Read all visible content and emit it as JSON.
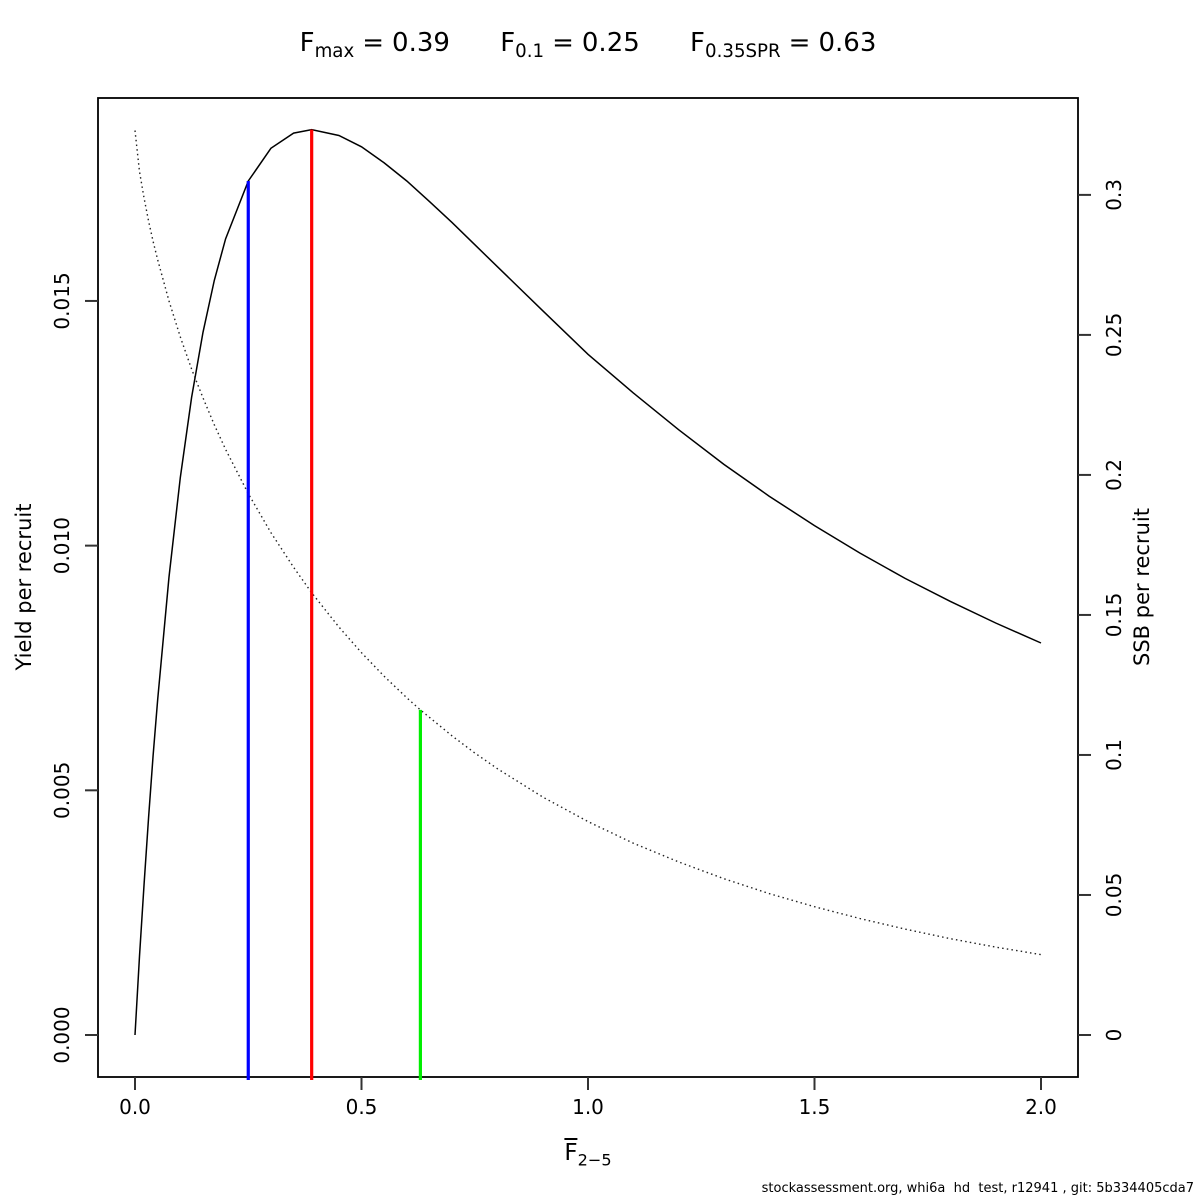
{
  "header": {
    "title_segments": [
      {
        "base": "F",
        "sub": "max",
        "eq": "=",
        "value": "0.39"
      },
      {
        "base": "F",
        "sub": "0.1",
        "eq": "=",
        "value": "0.25"
      },
      {
        "base": "F",
        "sub": "0.35SPR",
        "eq": "=",
        "value": "0.63"
      }
    ]
  },
  "chart_data": {
    "type": "line",
    "title": "Fmax = 0.39   F0.1 = 0.25   F0.35SPR = 0.63",
    "xlabel": {
      "base": "F",
      "overbar": true,
      "sub": "2−5"
    },
    "ylabel_left": "Yield per recruit",
    "ylabel_right": "SSB per recruit",
    "grid": false,
    "legend": "none",
    "x": [
      0,
      0.01,
      0.02,
      0.03,
      0.04,
      0.05,
      0.075,
      0.1,
      0.125,
      0.15,
      0.175,
      0.2,
      0.25,
      0.3,
      0.35,
      0.39,
      0.45,
      0.5,
      0.55,
      0.6,
      0.63,
      0.65,
      0.7,
      0.75,
      0.8,
      0.9,
      1.0,
      1.1,
      1.2,
      1.3,
      1.4,
      1.5,
      1.6,
      1.7,
      1.8,
      1.9,
      2.0
    ],
    "series": [
      {
        "name": "Yield per recruit",
        "axis": "left",
        "line_style": "solid",
        "color": "#000000",
        "values": [
          0,
          0.00161,
          0.00309,
          0.00445,
          0.00571,
          0.00686,
          0.00936,
          0.01139,
          0.01303,
          0.01436,
          0.01542,
          0.01627,
          0.01745,
          0.01812,
          0.01843,
          0.0185,
          0.01838,
          0.01815,
          0.01782,
          0.01745,
          0.0172,
          0.01703,
          0.0166,
          0.01615,
          0.0157,
          0.0148,
          0.01391,
          0.01312,
          0.01237,
          0.01166,
          0.01101,
          0.01041,
          0.00985,
          0.00933,
          0.00886,
          0.00842,
          0.00801
        ]
      },
      {
        "name": "SSB per recruit",
        "axis": "right",
        "line_style": "dotted",
        "color": "#222222",
        "values": [
          0.323,
          0.3083,
          0.2988,
          0.2906,
          0.2834,
          0.2768,
          0.2621,
          0.2493,
          0.2378,
          0.2275,
          0.2179,
          0.2091,
          0.1933,
          0.1794,
          0.167,
          0.1579,
          0.1457,
          0.1365,
          0.1281,
          0.1204,
          0.1161,
          0.1134,
          0.1068,
          0.1007,
          0.0951,
          0.085,
          0.0762,
          0.0685,
          0.0618,
          0.0558,
          0.0505,
          0.0458,
          0.0416,
          0.0378,
          0.0344,
          0.0314,
          0.0287
        ]
      }
    ],
    "reference_lines": [
      {
        "name": "F0.1",
        "x": 0.25,
        "color": "#0000ff",
        "meets_series": "Yield per recruit"
      },
      {
        "name": "Fmax",
        "x": 0.39,
        "color": "#ff0000",
        "meets_series": "Yield per recruit"
      },
      {
        "name": "F0.35SPR",
        "x": 0.63,
        "color": "#00ee00",
        "meets_series": "SSB per recruit"
      }
    ],
    "x_ticks": {
      "values": [
        0,
        0.5,
        1.0,
        1.5,
        2.0
      ],
      "labels": [
        "0.0",
        "0.5",
        "1.0",
        "1.5",
        "2.0"
      ]
    },
    "y_ticks_left": {
      "values": [
        0,
        0.005,
        0.01,
        0.015
      ],
      "labels": [
        "0.000",
        "0.005",
        "0.010",
        "0.015"
      ]
    },
    "y_ticks_right": {
      "values": [
        0,
        0.05,
        0.1,
        0.15,
        0.2,
        0.25,
        0.3
      ],
      "labels": [
        "0",
        "0.05",
        "0.1",
        "0.15",
        "0.2",
        "0.25",
        "0.3"
      ]
    },
    "xlim": [
      -0.0817,
      2.0817
    ],
    "ylim_left": [
      -0.000858,
      0.019147
    ],
    "ylim_right": [
      -0.015,
      0.3346
    ]
  },
  "footer": {
    "credit": "stockassessment.org, whi6a  hd  test, r12941 , git: 5b334405cda7"
  }
}
